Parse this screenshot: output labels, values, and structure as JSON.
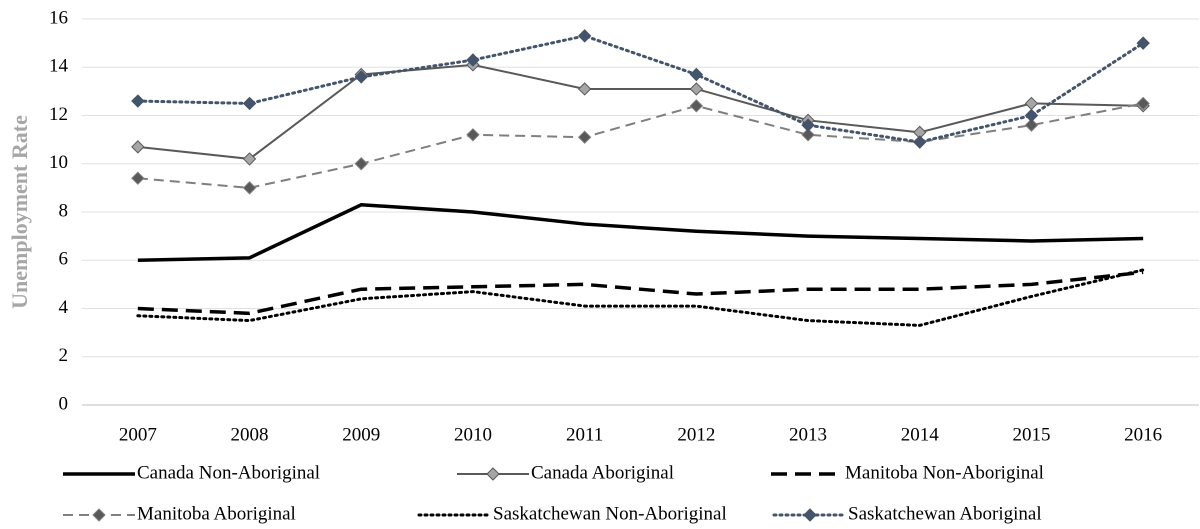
{
  "chart_data": {
    "type": "line",
    "y_label": "Unemployment Rate",
    "categories": [
      "2007",
      "2008",
      "2009",
      "2010",
      "2011",
      "2012",
      "2013",
      "2014",
      "2015",
      "2016"
    ],
    "ylim": [
      0,
      16
    ],
    "yticks": [
      0,
      2,
      4,
      6,
      8,
      10,
      12,
      14,
      16
    ],
    "grid": true,
    "legend": "bottom",
    "series": [
      {
        "name": "Canada Non-Aboriginal",
        "color": "#000000",
        "line_style": "solid",
        "marker": null,
        "values": [
          6.0,
          6.1,
          8.3,
          8.0,
          7.5,
          7.2,
          7.0,
          6.9,
          6.8,
          6.9
        ]
      },
      {
        "name": "Canada Aboriginal",
        "color": "#595959",
        "line_style": "solid",
        "marker": "diamond",
        "marker_color": "#a6a6a6",
        "values": [
          10.7,
          10.2,
          13.7,
          14.1,
          13.1,
          13.1,
          11.8,
          11.3,
          12.5,
          12.4
        ]
      },
      {
        "name": "Manitoba Non-Aboriginal",
        "color": "#000000",
        "line_style": "dashed",
        "marker": null,
        "values": [
          4.0,
          3.8,
          4.8,
          4.9,
          5.0,
          4.6,
          4.8,
          4.8,
          5.0,
          5.5
        ]
      },
      {
        "name": "Manitoba Aboriginal",
        "color": "#7f7f7f",
        "line_style": "dashed",
        "marker": "diamond",
        "marker_color": "#595959",
        "values": [
          9.4,
          9.0,
          10.0,
          11.2,
          11.1,
          12.4,
          11.2,
          10.9,
          11.6,
          12.5
        ]
      },
      {
        "name": "Saskatchewan Non-Aboriginal",
        "color": "#000000",
        "line_style": "dotted",
        "marker": null,
        "values": [
          3.7,
          3.5,
          4.4,
          4.7,
          4.1,
          4.1,
          3.5,
          3.3,
          4.5,
          5.6
        ]
      },
      {
        "name": "Saskatchewan Aboriginal",
        "color": "#44546a",
        "line_style": "dotted",
        "marker": "diamond",
        "marker_color": "#44546a",
        "values": [
          12.6,
          12.5,
          13.6,
          14.3,
          15.3,
          13.7,
          11.6,
          10.9,
          12.0,
          15.0
        ]
      }
    ]
  }
}
